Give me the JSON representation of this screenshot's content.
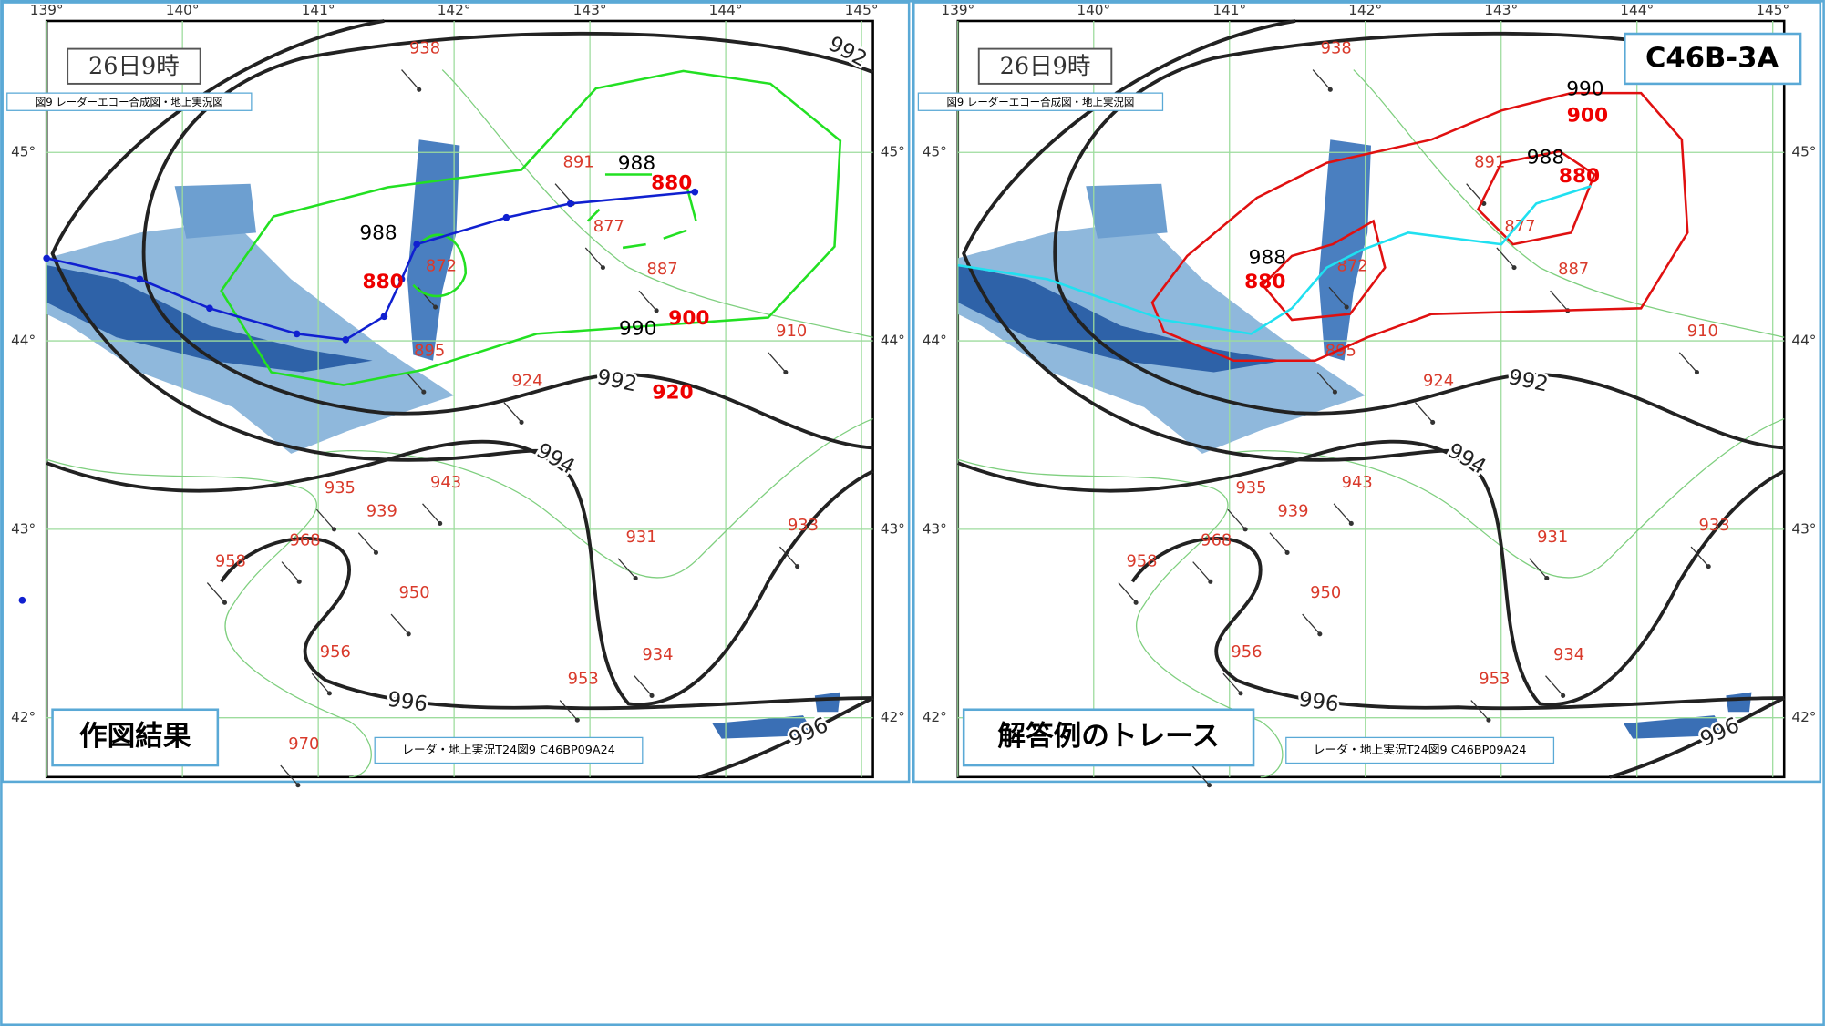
{
  "map": {
    "lon_labels": [
      "139°",
      "140°",
      "141°",
      "142°",
      "143°",
      "144°",
      "145°"
    ],
    "lat_labels": [
      "45°",
      "44°",
      "43°",
      "42°"
    ],
    "time": "26日9時",
    "caption": "図9 レーダーエコー合成図・地上実況図",
    "footer": "レーダ・地上実況T24図9 C46BP09A24",
    "isobar_labels": [
      "992",
      "992",
      "994",
      "996",
      "996"
    ],
    "stations": [
      "938",
      "891",
      "877",
      "887",
      "872",
      "895",
      "924",
      "910",
      "935",
      "943",
      "939",
      "931",
      "933",
      "968",
      "958",
      "950",
      "956",
      "953",
      "934",
      "970"
    ]
  },
  "panels": [
    {
      "label": "作図結果",
      "annotations": [
        "988",
        "880",
        "988",
        "880",
        "990",
        "900",
        "920"
      ]
    },
    {
      "label": "解答例のトレース",
      "code": "C46B-3A",
      "annotations": [
        "990",
        "900",
        "988",
        "880",
        "988",
        "880"
      ]
    }
  ]
}
